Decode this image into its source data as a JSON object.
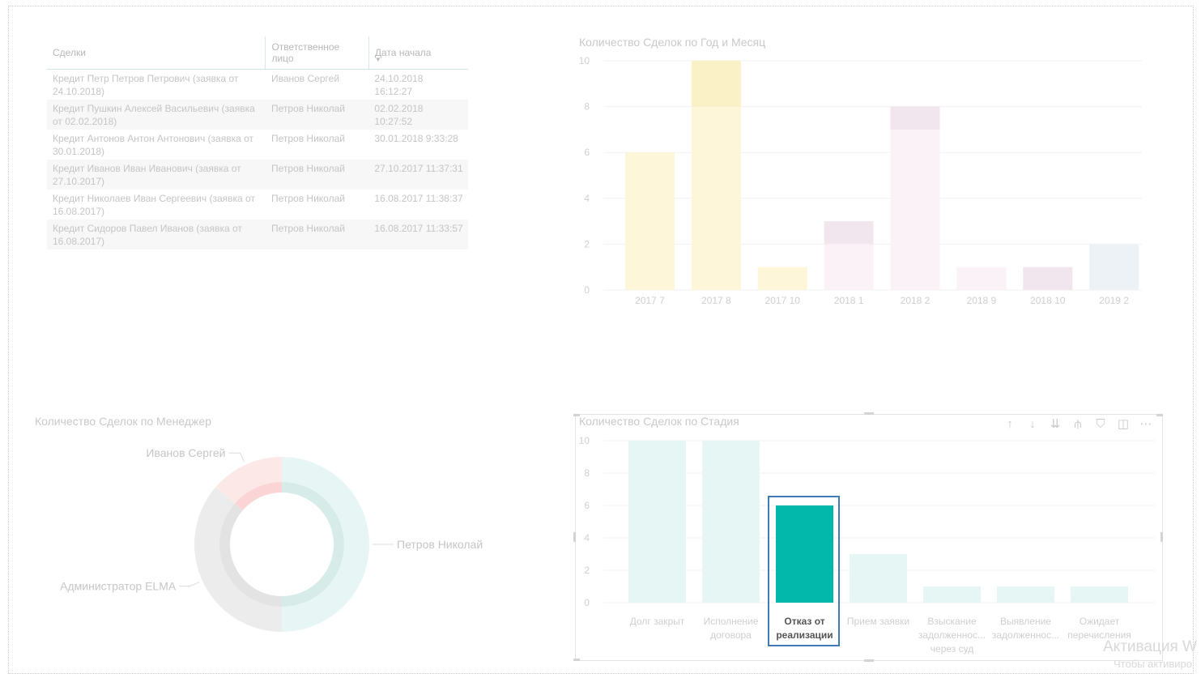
{
  "table": {
    "columns": [
      "Сделки",
      "Ответственное лицо",
      "Дата начала"
    ],
    "rows": [
      {
        "deal": "Кредит Петр Петров Петрович (заявка от 24.10.2018)",
        "owner": "Иванов Сергей",
        "date": "24.10.2018 16:12:27"
      },
      {
        "deal": "Кредит Пушкин Алексей Васильевич (заявка от 02.02.2018)",
        "owner": "Петров Николай",
        "date": "02.02.2018 10:27:52"
      },
      {
        "deal": "Кредит Антонов Антон Антонович (заявка от 30.01.2018)",
        "owner": "Петров Николай",
        "date": "30.01.2018 9:33:28"
      },
      {
        "deal": "Кредит Иванов Иван Иванович (заявка от 27.10.2017)",
        "owner": "Петров Николай",
        "date": "27.10.2017 11:37:31"
      },
      {
        "deal": "Кредит Николаев Иван Сергеевич (заявка от 16.08.2017)",
        "owner": "Петров Николай",
        "date": "16.08.2017 11:38:37"
      },
      {
        "deal": "Кредит Сидоров Павел Иванов (заявка от 16.08.2017)",
        "owner": "Петров Николай",
        "date": "16.08.2017 11:33:57"
      }
    ]
  },
  "month_chart": {
    "title": "Количество Сделок по Год и Месяц"
  },
  "manager_chart": {
    "title": "Количество Сделок по Менеджер"
  },
  "stage_chart": {
    "title": "Количество Сделок по Стадия"
  },
  "watermark": {
    "line1": "Активация W",
    "line2": "Чтобы активиро"
  },
  "chart_data": [
    {
      "type": "bar",
      "title": "Количество Сделок по Год и Месяц",
      "categories": [
        "2017 7",
        "2017 8",
        "2017 10",
        "2018 1",
        "2018 2",
        "2018 9",
        "2018 10",
        "2019 2"
      ],
      "yticks": [
        0,
        2,
        4,
        6,
        8,
        10
      ],
      "ylim": [
        0,
        10
      ],
      "stacked": true,
      "series": [
        {
          "color": "#fdf6d9",
          "values": [
            6,
            8,
            1,
            0,
            0,
            0,
            0,
            0
          ]
        },
        {
          "color": "#fbf1c6",
          "values": [
            0,
            2,
            0,
            0,
            0,
            0,
            0,
            0
          ]
        },
        {
          "color": "#faf2f7",
          "values": [
            0,
            0,
            0,
            2,
            7,
            1,
            0,
            0
          ]
        },
        {
          "color": "#f1e6ee",
          "values": [
            0,
            0,
            0,
            1,
            1,
            0,
            1,
            0
          ]
        },
        {
          "color": "#edf2f6",
          "values": [
            0,
            0,
            0,
            0,
            0,
            0,
            0,
            2
          ]
        }
      ],
      "grid": true
    },
    {
      "type": "pie",
      "title": "Количество Сделок по Менеджер",
      "donut": true,
      "slices": [
        {
          "label": "Петров Николай",
          "value": 11,
          "color": "#e7f6f5",
          "inner_color": "#d7ece9"
        },
        {
          "label": "Администратор ELMA",
          "value": 8,
          "color": "#ececec",
          "inner_color": "#e3e3e3"
        },
        {
          "label": "Иванов Сергей",
          "value": 3,
          "color": "#fde8e8",
          "inner_color": "#fbd5d5"
        }
      ]
    },
    {
      "type": "bar",
      "title": "Количество Сделок по Стадия",
      "categories": [
        "Долг закрыт",
        "Исполнение договора",
        "Отказ от реализации",
        "Прием заявки",
        "Взыскание задолженнос... через суд",
        "Выявление задолженнос...",
        "Ожидает перечисления"
      ],
      "category_lines": [
        [
          "Долг закрыт"
        ],
        [
          "Исполнение",
          "договора"
        ],
        [
          "Отказ от",
          "реализации"
        ],
        [
          "Прием заявки"
        ],
        [
          "Взыскание",
          "задолженнос...",
          "через суд"
        ],
        [
          "Выявление",
          "задолженнос..."
        ],
        [
          "Ожидает",
          "перечисления"
        ]
      ],
      "values": [
        10,
        10,
        6,
        3,
        1,
        1,
        1
      ],
      "selected_index": 2,
      "color": "#e6f6f5",
      "selected_color": "#01b8aa",
      "yticks": [
        0,
        2,
        4,
        6,
        8,
        10
      ],
      "ylim": [
        0,
        10
      ],
      "grid": true
    }
  ]
}
